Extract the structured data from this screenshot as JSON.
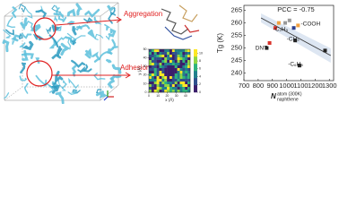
{
  "labels": {
    "aggregation": "Aggregation",
    "adhesion": "Adhesion"
  },
  "chart_data": [
    {
      "type": "heatmap",
      "xlabel": "x (Å)",
      "ylabel": "y (Å)",
      "xlim": [
        0,
        45
      ],
      "xticks": [
        0,
        10,
        20,
        30,
        40
      ],
      "ylim": [
        0,
        50
      ],
      "yticks": [
        0,
        10,
        20,
        30,
        40,
        50
      ],
      "colorbar_lim": [
        0,
        11
      ],
      "colorbar_ticks": [
        0,
        2,
        4,
        6,
        8,
        10
      ]
    },
    {
      "type": "scatter",
      "ylabel": "Tg (K)",
      "xlabel": "N",
      "xlabel_sup": "atom (300K)",
      "xlabel_sub": "naphthene",
      "annotation": "PCC = -0.75",
      "xlim": [
        700,
        1330
      ],
      "xticks": [
        700,
        800,
        900,
        1000,
        1100,
        1200,
        1300
      ],
      "ylim": [
        237,
        267
      ],
      "yticks": [
        240,
        245,
        250,
        255,
        260,
        265
      ],
      "x": [
        860,
        880,
        920,
        945,
        990,
        1020,
        1050,
        1080,
        1060,
        1090,
        1270
      ],
      "values": [
        250,
        252,
        258,
        260,
        260,
        261,
        258,
        259,
        253,
        243,
        249
      ],
      "colors": [
        "#222222",
        "#d9342b",
        "#d9342b",
        "#f0a040",
        "#999999",
        "#999999",
        "#2a3f8f",
        "#f0a040",
        "#222222",
        "#222222",
        "#222222"
      ],
      "fit_line": {
        "x": [
          820,
          1310
        ],
        "y": [
          262,
          247
        ]
      },
      "point_labels": [
        {
          "text": "DNT",
          "x": 780,
          "y": 250
        },
        {
          "text": "-C₂H₅",
          "x": 905,
          "y": 257.5
        },
        {
          "text": "-CH₃",
          "x": 1000,
          "y": 253.5
        },
        {
          "text": "-COOH",
          "x": 1100,
          "y": 259.5
        },
        {
          "text": "-C₆H₅",
          "x": 1010,
          "y": 243.5
        }
      ]
    }
  ]
}
